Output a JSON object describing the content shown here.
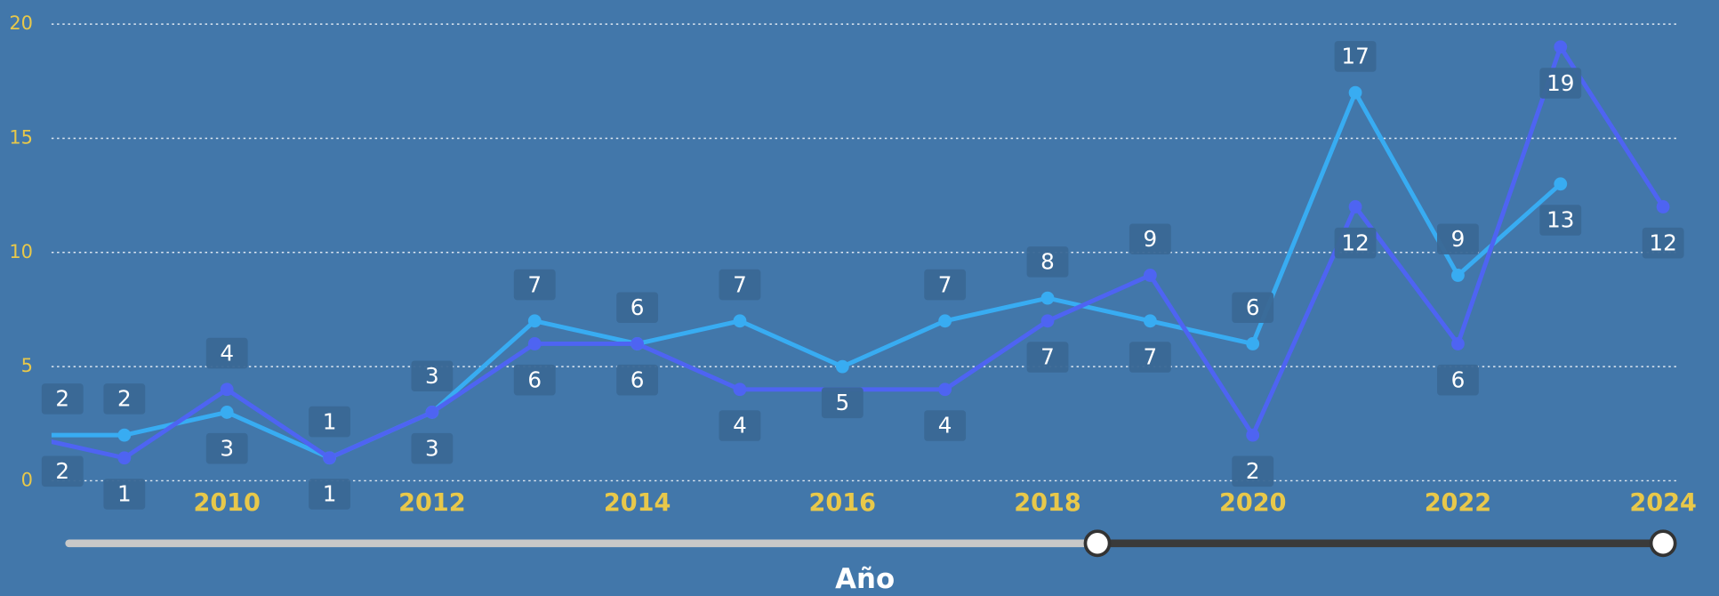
{
  "chart_data": {
    "type": "line",
    "x_label": "Año",
    "xlim": [
      2008.29,
      2024
    ],
    "xticks": [
      2010,
      2012,
      2014,
      2016,
      2018,
      2020,
      2022,
      2024
    ],
    "ylim": [
      0,
      20
    ],
    "yticks": [
      0,
      5,
      10,
      15,
      20
    ],
    "grid": true,
    "series": [
      {
        "color": "#38acf2",
        "x": [
          2008,
          2009,
          2010,
          2011,
          2012,
          2013,
          2014,
          2015,
          2016,
          2017,
          2018,
          2019,
          2020,
          2021,
          2022,
          2023
        ],
        "values": [
          2,
          2,
          3,
          1,
          3,
          7,
          6,
          7,
          5,
          7,
          8,
          7,
          6,
          17,
          9,
          13
        ]
      },
      {
        "color": "#4e64f2",
        "x": [
          2008,
          2009,
          2010,
          2011,
          2012,
          2013,
          2014,
          2015,
          2017,
          2018,
          2019,
          2020,
          2021,
          2022,
          2023,
          2024
        ],
        "values": [
          2,
          1,
          4,
          1,
          3,
          6,
          6,
          4,
          4,
          7,
          9,
          2,
          12,
          6,
          19,
          12
        ]
      }
    ]
  }
}
